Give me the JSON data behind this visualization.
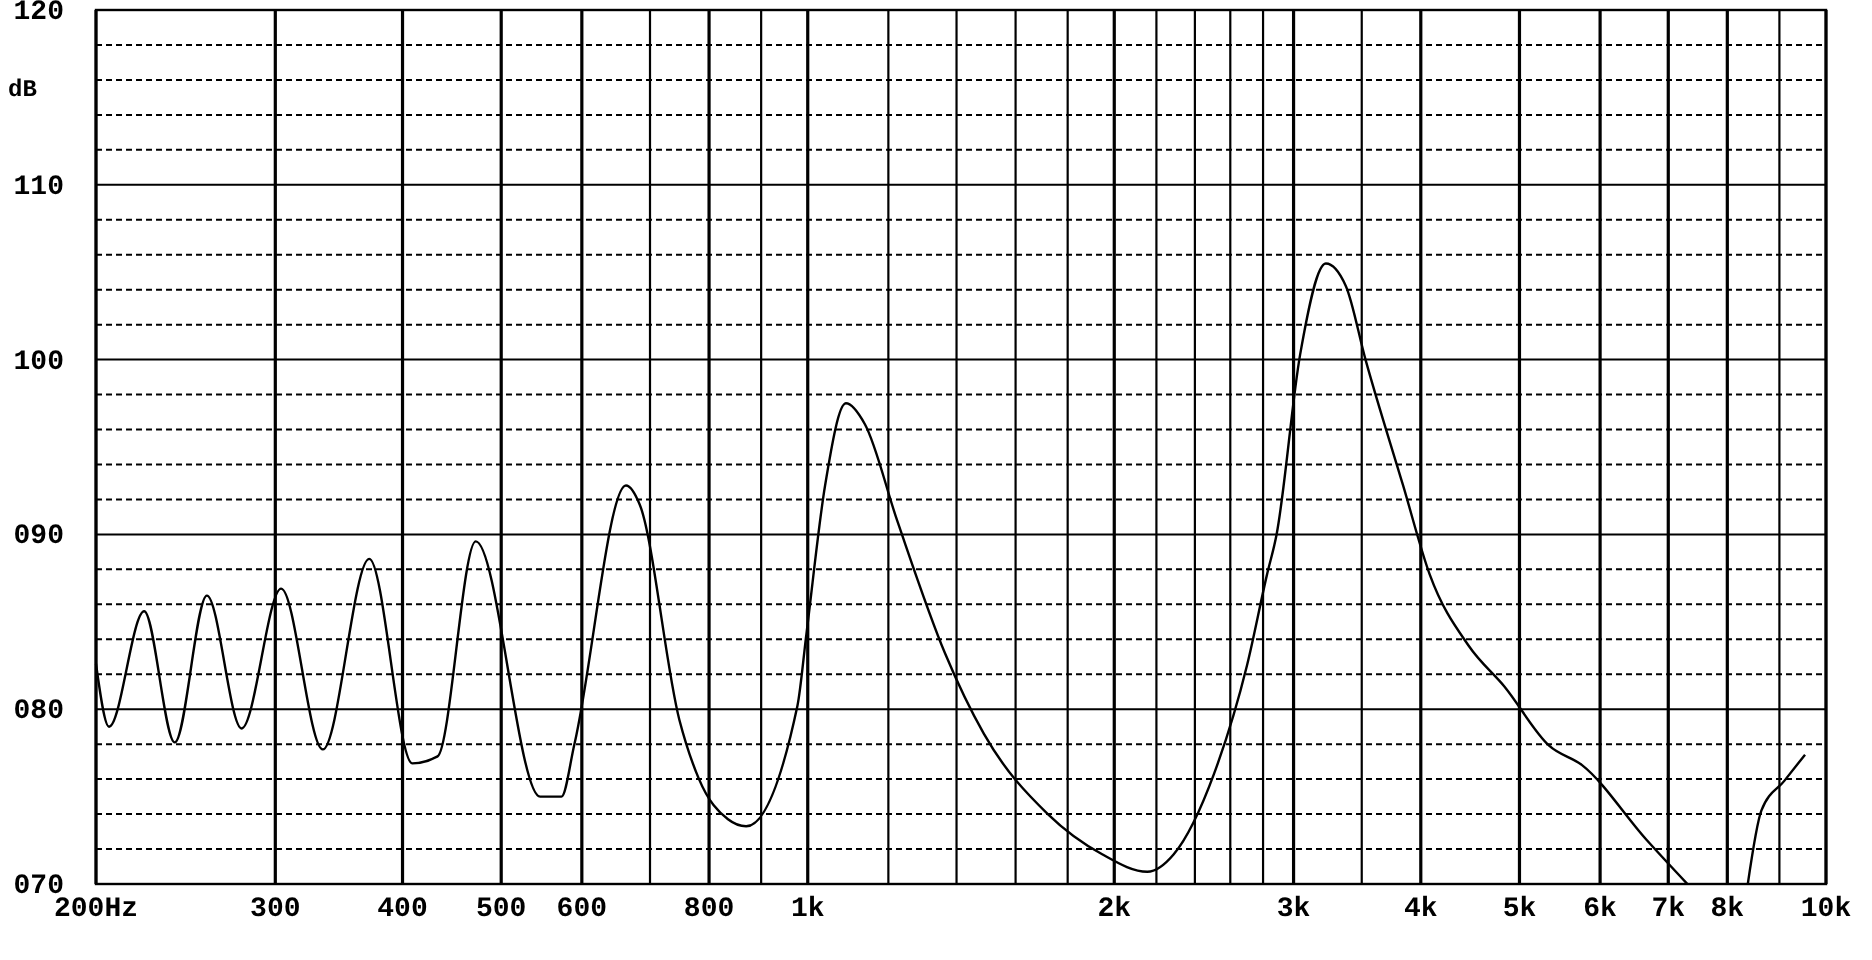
{
  "chart_data": {
    "type": "line",
    "ylabel": "dB",
    "log": "x",
    "grid": true,
    "marker": "none",
    "line_style": "solid",
    "xlim": [
      200,
      10000
    ],
    "ylim": [
      70,
      120
    ],
    "xticks": [
      {
        "value": 200,
        "label": "200Hz"
      },
      300,
      400,
      500,
      600,
      {
        "value": 700,
        "label": null
      },
      800,
      {
        "value": 900,
        "label": null
      },
      {
        "value": 1000,
        "label": "1k"
      },
      {
        "value": 1200,
        "label": null
      },
      {
        "value": 1400,
        "label": null
      },
      {
        "value": 1600,
        "label": null
      },
      {
        "value": 1800,
        "label": null
      },
      {
        "value": 2000,
        "label": "2k"
      },
      {
        "value": 2200,
        "label": null
      },
      {
        "value": 2400,
        "label": null
      },
      {
        "value": 2600,
        "label": null
      },
      {
        "value": 2800,
        "label": null
      },
      {
        "value": 3000,
        "label": "3k"
      },
      {
        "value": 3500,
        "label": null
      },
      {
        "value": 4000,
        "label": "4k"
      },
      {
        "value": 5000,
        "label": "5k"
      },
      {
        "value": 6000,
        "label": "6k"
      },
      {
        "value": 7000,
        "label": "7k"
      },
      {
        "value": 8000,
        "label": "8k"
      },
      {
        "value": 9000,
        "label": null
      },
      {
        "value": 10000,
        "label": "10k"
      }
    ],
    "yticks": [
      {
        "value": 70,
        "label": "070"
      },
      {
        "value": 72,
        "label": null
      },
      {
        "value": 74,
        "label": null
      },
      {
        "value": 76,
        "label": null
      },
      {
        "value": 78,
        "label": null
      },
      {
        "value": 80,
        "label": "080"
      },
      {
        "value": 82,
        "label": null
      },
      {
        "value": 84,
        "label": null
      },
      {
        "value": 86,
        "label": null
      },
      {
        "value": 88,
        "label": null
      },
      {
        "value": 90,
        "label": "090"
      },
      {
        "value": 92,
        "label": null
      },
      {
        "value": 94,
        "label": null
      },
      {
        "value": 96,
        "label": null
      },
      {
        "value": 98,
        "label": null
      },
      100,
      {
        "value": 102,
        "label": null
      },
      {
        "value": 104,
        "label": null
      },
      {
        "value": 106,
        "label": null
      },
      {
        "value": 108,
        "label": null
      },
      110,
      {
        "value": 112,
        "label": null
      },
      {
        "value": 114,
        "label": null
      },
      {
        "value": 116,
        "label": null
      },
      {
        "value": 118,
        "label": null
      },
      120
    ],
    "series": [
      {
        "color": "#000000",
        "x": [
          200,
          206,
          223,
          239,
          257,
          278,
          304,
          334,
          371,
          409,
          433,
          472,
          546,
          573,
          590,
          663,
          684,
          748,
          782,
          835,
          870,
          977,
          997,
          1040,
          1090,
          1138,
          1224,
          1364,
          1489,
          1721,
          1946,
          2155,
          2288,
          2506,
          2700,
          2825,
          2887,
          3045,
          3227,
          3377,
          3530,
          3843,
          4082,
          4461,
          4832,
          5350,
          5760,
          6670,
          7309,
          7900,
          8379,
          8640,
          9100,
          9537
        ],
        "values": [
          82.6,
          79.0,
          85.6,
          78.1,
          86.5,
          78.9,
          86.9,
          77.7,
          88.6,
          76.9,
          77.3,
          89.6,
          75.0,
          75.0,
          78.0,
          92.8,
          91.7,
          79.4,
          76.0,
          73.7,
          73.3,
          80.2,
          84.3,
          92.8,
          97.5,
          96.3,
          90.8,
          83.2,
          78.6,
          74.0,
          71.7,
          70.7,
          71.7,
          76.3,
          82.5,
          87.7,
          90.0,
          100.3,
          105.5,
          104.2,
          100.0,
          92.8,
          87.7,
          83.6,
          81.3,
          77.9,
          76.8,
          72.5,
          70.0,
          null,
          70.0,
          74.2,
          75.9,
          77.4
        ]
      }
    ]
  }
}
